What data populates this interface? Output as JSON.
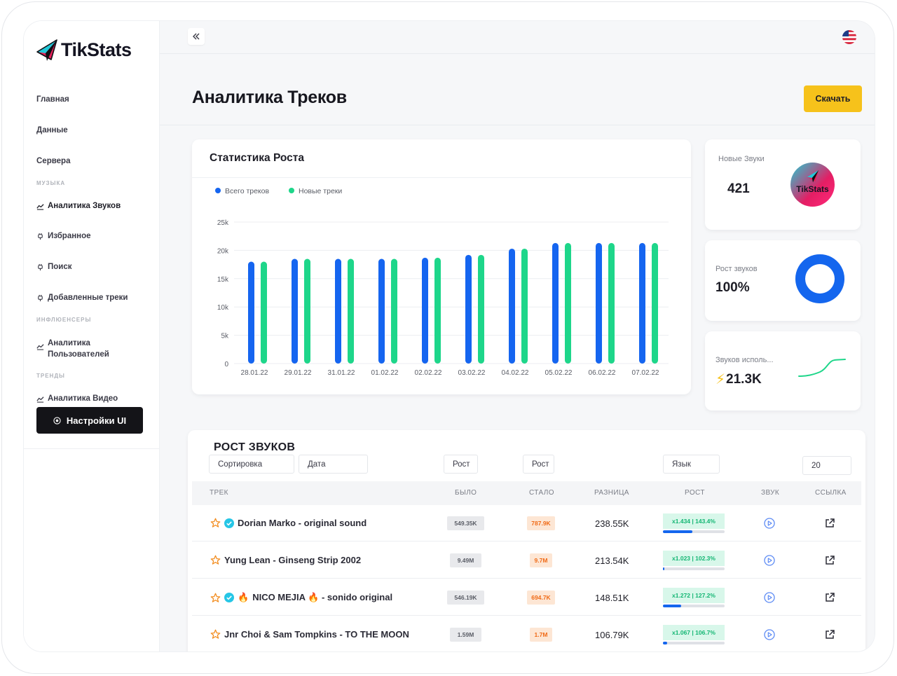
{
  "app": {
    "name": "TikStats"
  },
  "sidebar": {
    "top_links": [
      {
        "label": "Главная"
      },
      {
        "label": "Данные"
      },
      {
        "label": "Сервера"
      }
    ],
    "sections": [
      {
        "title": "МУЗЫКА"
      },
      {
        "title": "ИНФЛЮЕНСЕРЫ"
      },
      {
        "title": "ТРЕНДЫ"
      }
    ],
    "music_links": [
      {
        "label": "Аналитика Звуков"
      },
      {
        "label": "Избранное"
      },
      {
        "label": "Поиск"
      },
      {
        "label": "Добавленные треки"
      }
    ],
    "influencer_link_line1": "Аналитика",
    "influencer_link_line2": "Пользователей",
    "trends_link": "Аналитика Видео",
    "settings_label": "Настройки UI"
  },
  "header": {
    "title": "Аналитика Треков",
    "download_label": "Скачать"
  },
  "chart_card": {
    "title": "Статистика Роста"
  },
  "chart_data": {
    "type": "bar",
    "title": "Статистика Роста",
    "categories": [
      "28.01.22",
      "29.01.22",
      "31.01.22",
      "01.02.22",
      "02.02.22",
      "03.02.22",
      "04.02.22",
      "05.02.22",
      "06.02.22",
      "07.02.22"
    ],
    "series": [
      {
        "name": "Всего треков",
        "color": "#1565f0",
        "values": [
          18000,
          18500,
          18500,
          18500,
          18700,
          19200,
          20300,
          21300,
          21300,
          21300
        ]
      },
      {
        "name": "Новые треки",
        "color": "#1ed68a",
        "values": [
          18000,
          18500,
          18500,
          18500,
          18700,
          19200,
          20300,
          21300,
          21300,
          21300
        ]
      }
    ],
    "y_ticks": [
      "0",
      "5k",
      "10k",
      "15k",
      "20k",
      "25k"
    ],
    "ylim": [
      0,
      25000
    ],
    "legend_position": "top-left",
    "grid": true
  },
  "stats": {
    "new_sounds": {
      "label": "Новые Звуки",
      "value": "421",
      "logo_text": "TikStats"
    },
    "sound_growth": {
      "label": "Рост звуков",
      "value": "100%",
      "fraction": 1.0
    },
    "sounds_used": {
      "label": "Звуков исполь...",
      "value": "21.3K",
      "icon": "lightning-icon"
    }
  },
  "table": {
    "title": "РОСТ ЗВУКОВ",
    "filters": {
      "sort": "Сортировка",
      "date": "Дата",
      "growth1": "Рост",
      "growth2": "Рост",
      "language": "Язык",
      "count": "20"
    },
    "columns": {
      "track": "ТРЕК",
      "was": "БЫЛО",
      "now": "СТАЛО",
      "diff": "РАЗНИЦА",
      "growth": "РОСТ",
      "sound": "ЗВУК",
      "link": "ССЫЛКА"
    },
    "rows": [
      {
        "track": "Dorian Marko - original sound",
        "verified": true,
        "was": "549.35K",
        "now": "787.9K",
        "diff": "238.55K",
        "growth": "x1.434 | 143.4%",
        "progress": 0.48
      },
      {
        "track": "Yung Lean - Ginseng Strip 2002",
        "verified": false,
        "was": "9.49M",
        "now": "9.7M",
        "diff": "213.54K",
        "growth": "x1.023 | 102.3%",
        "progress": 0.02
      },
      {
        "track": "NICO MEJIA 🔥 - sonido original",
        "prefix": "🔥",
        "verified": true,
        "was": "546.19K",
        "now": "694.7K",
        "diff": "148.51K",
        "growth": "x1.272 | 127.2%",
        "progress": 0.3
      },
      {
        "track": "Jnr Choi & Sam Tompkins - TO THE MOON",
        "verified": false,
        "was": "1.59M",
        "now": "1.7M",
        "diff": "106.79K",
        "growth": "x1.067 | 106.7%",
        "progress": 0.07
      }
    ]
  }
}
